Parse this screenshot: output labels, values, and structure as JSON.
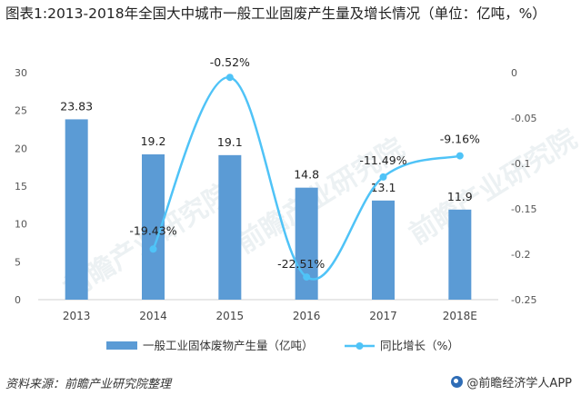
{
  "title": "图表1:2013-2018年全国大中城市一般工业固废产生量及增长情况（单位：亿吨，%）",
  "source": "资料来源：前瞻产业研究院整理",
  "brand": "@前瞻经济学人APP",
  "watermark": "前瞻产业研究院",
  "chart_data": {
    "type": "bar+line",
    "categories": [
      "2013",
      "2014",
      "2015",
      "2016",
      "2017",
      "2018E"
    ],
    "series": [
      {
        "name": "一般工业固体废物产生量（亿吨）",
        "type": "bar",
        "axis": "left",
        "color": "#5b9bd5",
        "values": [
          23.83,
          19.2,
          19.1,
          14.8,
          13.1,
          11.9
        ],
        "labels": [
          "23.83",
          "19.2",
          "19.1",
          "14.8",
          "13.1",
          "11.9"
        ]
      },
      {
        "name": "同比增长（%）",
        "type": "line",
        "axis": "right",
        "color": "#4fc3f7",
        "values": [
          null,
          -0.1943,
          -0.0052,
          -0.2251,
          -0.1149,
          -0.0916
        ],
        "labels": [
          "",
          "-19.43%",
          "-0.52%",
          "-22.51%",
          "-11.49%",
          "-9.16%"
        ]
      }
    ],
    "y_left": {
      "min": 0,
      "max": 30,
      "ticks": [
        "0",
        "5",
        "10",
        "15",
        "20",
        "25",
        "30"
      ]
    },
    "y_right": {
      "min": -0.25,
      "max": 0,
      "ticks": [
        "0",
        "-0.05",
        "-0.1",
        "-0.15",
        "-0.2",
        "-0.25"
      ]
    },
    "legend_position": "bottom"
  }
}
